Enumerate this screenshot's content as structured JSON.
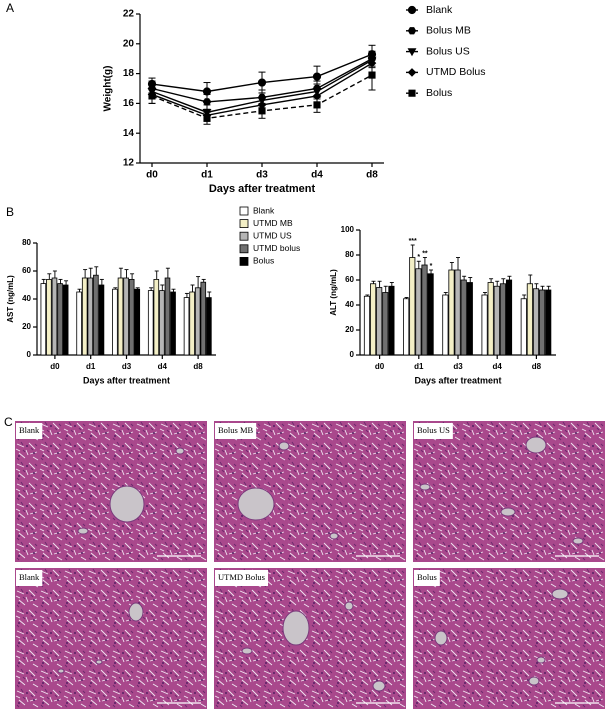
{
  "panels": [
    "A",
    "B",
    "C"
  ],
  "chart_data": [
    {
      "type": "line",
      "ylabel": "Weight(g)",
      "xlabel": "Days after treatment",
      "categories": [
        "d0",
        "d1",
        "d3",
        "d4",
        "d8"
      ],
      "ylim": [
        12,
        22
      ],
      "yticks": [
        12,
        14,
        16,
        18,
        20,
        22
      ],
      "legend": "right",
      "series": [
        {
          "name": "Blank",
          "color": "#000000",
          "marker": "circle",
          "dashed": false,
          "values": [
            17.3,
            16.8,
            17.4,
            17.8,
            19.3
          ],
          "errors": [
            0.4,
            0.6,
            0.7,
            0.7,
            0.6
          ]
        },
        {
          "name": "Bolus MB",
          "color": "#000000",
          "marker": "hexagon",
          "dashed": false,
          "values": [
            17.0,
            16.1,
            16.4,
            17.0,
            19.0
          ],
          "errors": [
            0.5,
            0.5,
            0.5,
            0.5,
            0.5
          ]
        },
        {
          "name": "Bolus US",
          "color": "#000000",
          "marker": "triangle-down",
          "dashed": false,
          "values": [
            16.8,
            15.4,
            16.2,
            16.8,
            18.9
          ],
          "errors": [
            0.5,
            0.5,
            0.5,
            0.5,
            0.5
          ]
        },
        {
          "name": "UTMD Bolus",
          "color": "#000000",
          "marker": "diamond",
          "dashed": false,
          "values": [
            16.6,
            15.2,
            15.9,
            16.5,
            18.7
          ],
          "errors": [
            0.6,
            0.4,
            0.5,
            0.5,
            0.6
          ]
        },
        {
          "name": "Bolus",
          "color": "#000000",
          "marker": "square",
          "dashed": true,
          "values": [
            16.5,
            15.0,
            15.5,
            15.9,
            17.9
          ],
          "errors": [
            0.5,
            0.4,
            0.5,
            0.5,
            1.0
          ]
        }
      ]
    },
    {
      "type": "bar",
      "ylabel": "AST (ng/mL)",
      "xlabel": "Days after treatment",
      "categories": [
        "d0",
        "d1",
        "d3",
        "d4",
        "d8"
      ],
      "ylim": [
        0,
        80
      ],
      "yticks": [
        0,
        20,
        40,
        60,
        80
      ],
      "legend": "right",
      "series": [
        {
          "name": "Blank",
          "color": "#ffffff",
          "values": [
            51,
            45,
            47,
            46,
            41
          ],
          "errors": [
            3,
            2,
            1,
            2,
            3
          ]
        },
        {
          "name": "UTMD MB",
          "color": "#f3efc6",
          "values": [
            54,
            55,
            55,
            54,
            45
          ],
          "errors": [
            4,
            6,
            7,
            6,
            5
          ]
        },
        {
          "name": "UTMD US",
          "color": "#b5b5b5",
          "values": [
            55,
            55,
            55,
            46,
            48
          ],
          "errors": [
            5,
            7,
            6,
            4,
            8
          ]
        },
        {
          "name": "UTMD bolus",
          "color": "#707070",
          "values": [
            51,
            57,
            54,
            55,
            52
          ],
          "errors": [
            3,
            6,
            4,
            7,
            2
          ]
        },
        {
          "name": "Bolus",
          "color": "#000000",
          "values": [
            50,
            50,
            47,
            45,
            41
          ],
          "errors": [
            3,
            4,
            1,
            2,
            4
          ]
        }
      ]
    },
    {
      "type": "bar",
      "ylabel": "ALT (ng/mL)",
      "xlabel": "Days after treatment",
      "categories": [
        "d0",
        "d1",
        "d3",
        "d4",
        "d8"
      ],
      "ylim": [
        0,
        100
      ],
      "yticks": [
        0,
        20,
        40,
        60,
        80,
        100
      ],
      "legend": "none",
      "annotations": [
        {
          "category": "d1",
          "series": 1,
          "text": "***"
        },
        {
          "category": "d1",
          "series": 2,
          "text": "*"
        },
        {
          "category": "d1",
          "series": 3,
          "text": "**"
        },
        {
          "category": "d1",
          "series": 4,
          "text": "*"
        }
      ],
      "series": [
        {
          "color": "#ffffff",
          "values": [
            47,
            45,
            48,
            48,
            45
          ],
          "errors": [
            1,
            1,
            2,
            2,
            3
          ]
        },
        {
          "color": "#f3efc6",
          "values": [
            57,
            78,
            68,
            58,
            57
          ],
          "errors": [
            2,
            10,
            6,
            3,
            7
          ]
        },
        {
          "color": "#b5b5b5",
          "values": [
            54,
            69,
            68,
            55,
            53
          ],
          "errors": [
            5,
            6,
            10,
            4,
            4
          ]
        },
        {
          "color": "#707070",
          "values": [
            50,
            72,
            60,
            57,
            52
          ],
          "errors": [
            5,
            6,
            3,
            4,
            3
          ]
        },
        {
          "color": "#000000",
          "values": [
            55,
            65,
            58,
            60,
            52
          ],
          "errors": [
            3,
            3,
            4,
            3,
            3
          ]
        }
      ]
    }
  ],
  "micrographs": [
    {
      "label": "Blank"
    },
    {
      "label": "Bolus MB"
    },
    {
      "label": "Bolus US"
    },
    {
      "label": "Blank"
    },
    {
      "label": "UTMD Bolus"
    },
    {
      "label": "Bolus"
    }
  ]
}
